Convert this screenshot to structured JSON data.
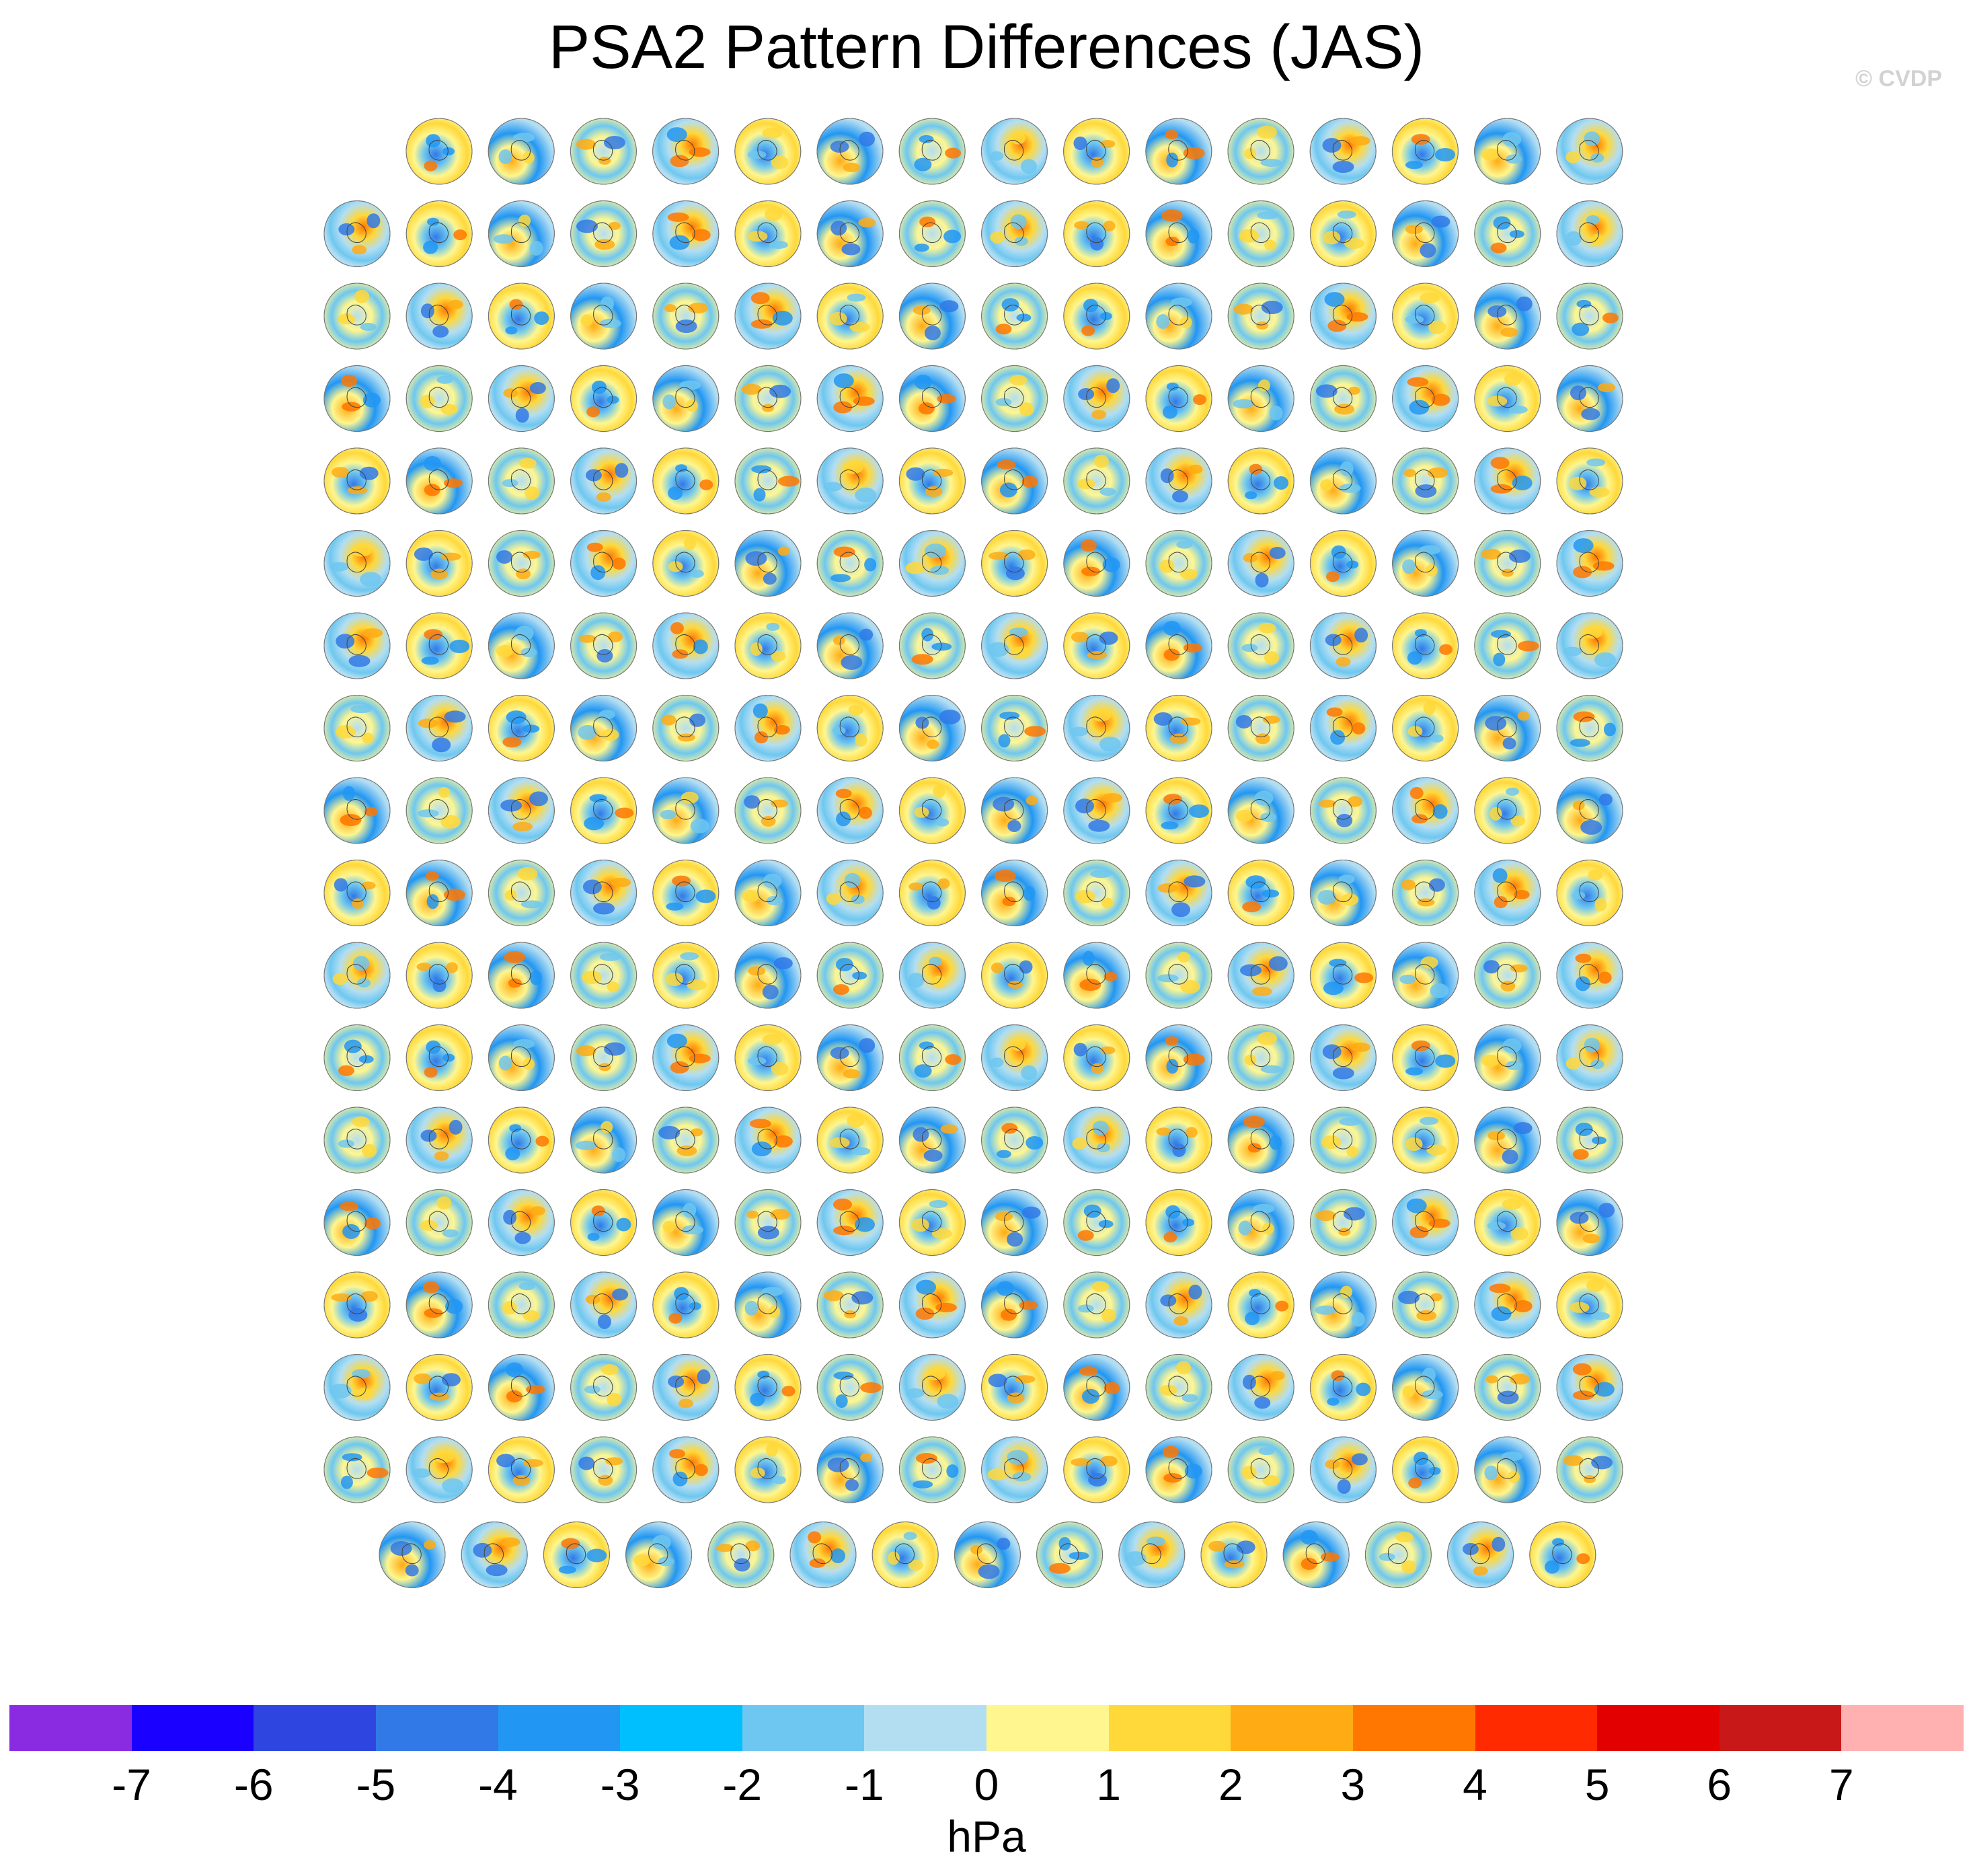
{
  "title": "PSA2 Pattern Differences (JAS)",
  "watermark": "© CVDP",
  "chart_data": {
    "type": "heatmap",
    "title": "PSA2 Pattern Differences (JAS)",
    "description_units": "hPa",
    "panel_rows": [
      15,
      16,
      16,
      16,
      16,
      16,
      16,
      16,
      16,
      16,
      16,
      16,
      16,
      16,
      16,
      16,
      16,
      15
    ],
    "colorbar": {
      "label": "hPa",
      "ticks": [
        "-7",
        "-6",
        "-5",
        "-4",
        "-3",
        "-2",
        "-1",
        "0",
        "1",
        "2",
        "3",
        "4",
        "5",
        "6",
        "7"
      ],
      "levels": [
        -8,
        -7,
        -6,
        -5,
        -4,
        -3,
        -2,
        -1,
        0,
        1,
        2,
        3,
        4,
        5,
        6,
        7,
        8
      ],
      "colors": [
        "#8a2be2",
        "#1a00ff",
        "#2e45e0",
        "#3079e6",
        "#2196f3",
        "#00bfff",
        "#6ec7f0",
        "#b3def2",
        "#fff68f",
        "#ffd83a",
        "#ffab13",
        "#ff7700",
        "#ff2a00",
        "#e30000",
        "#c81818",
        "#ffb1b1"
      ]
    }
  }
}
